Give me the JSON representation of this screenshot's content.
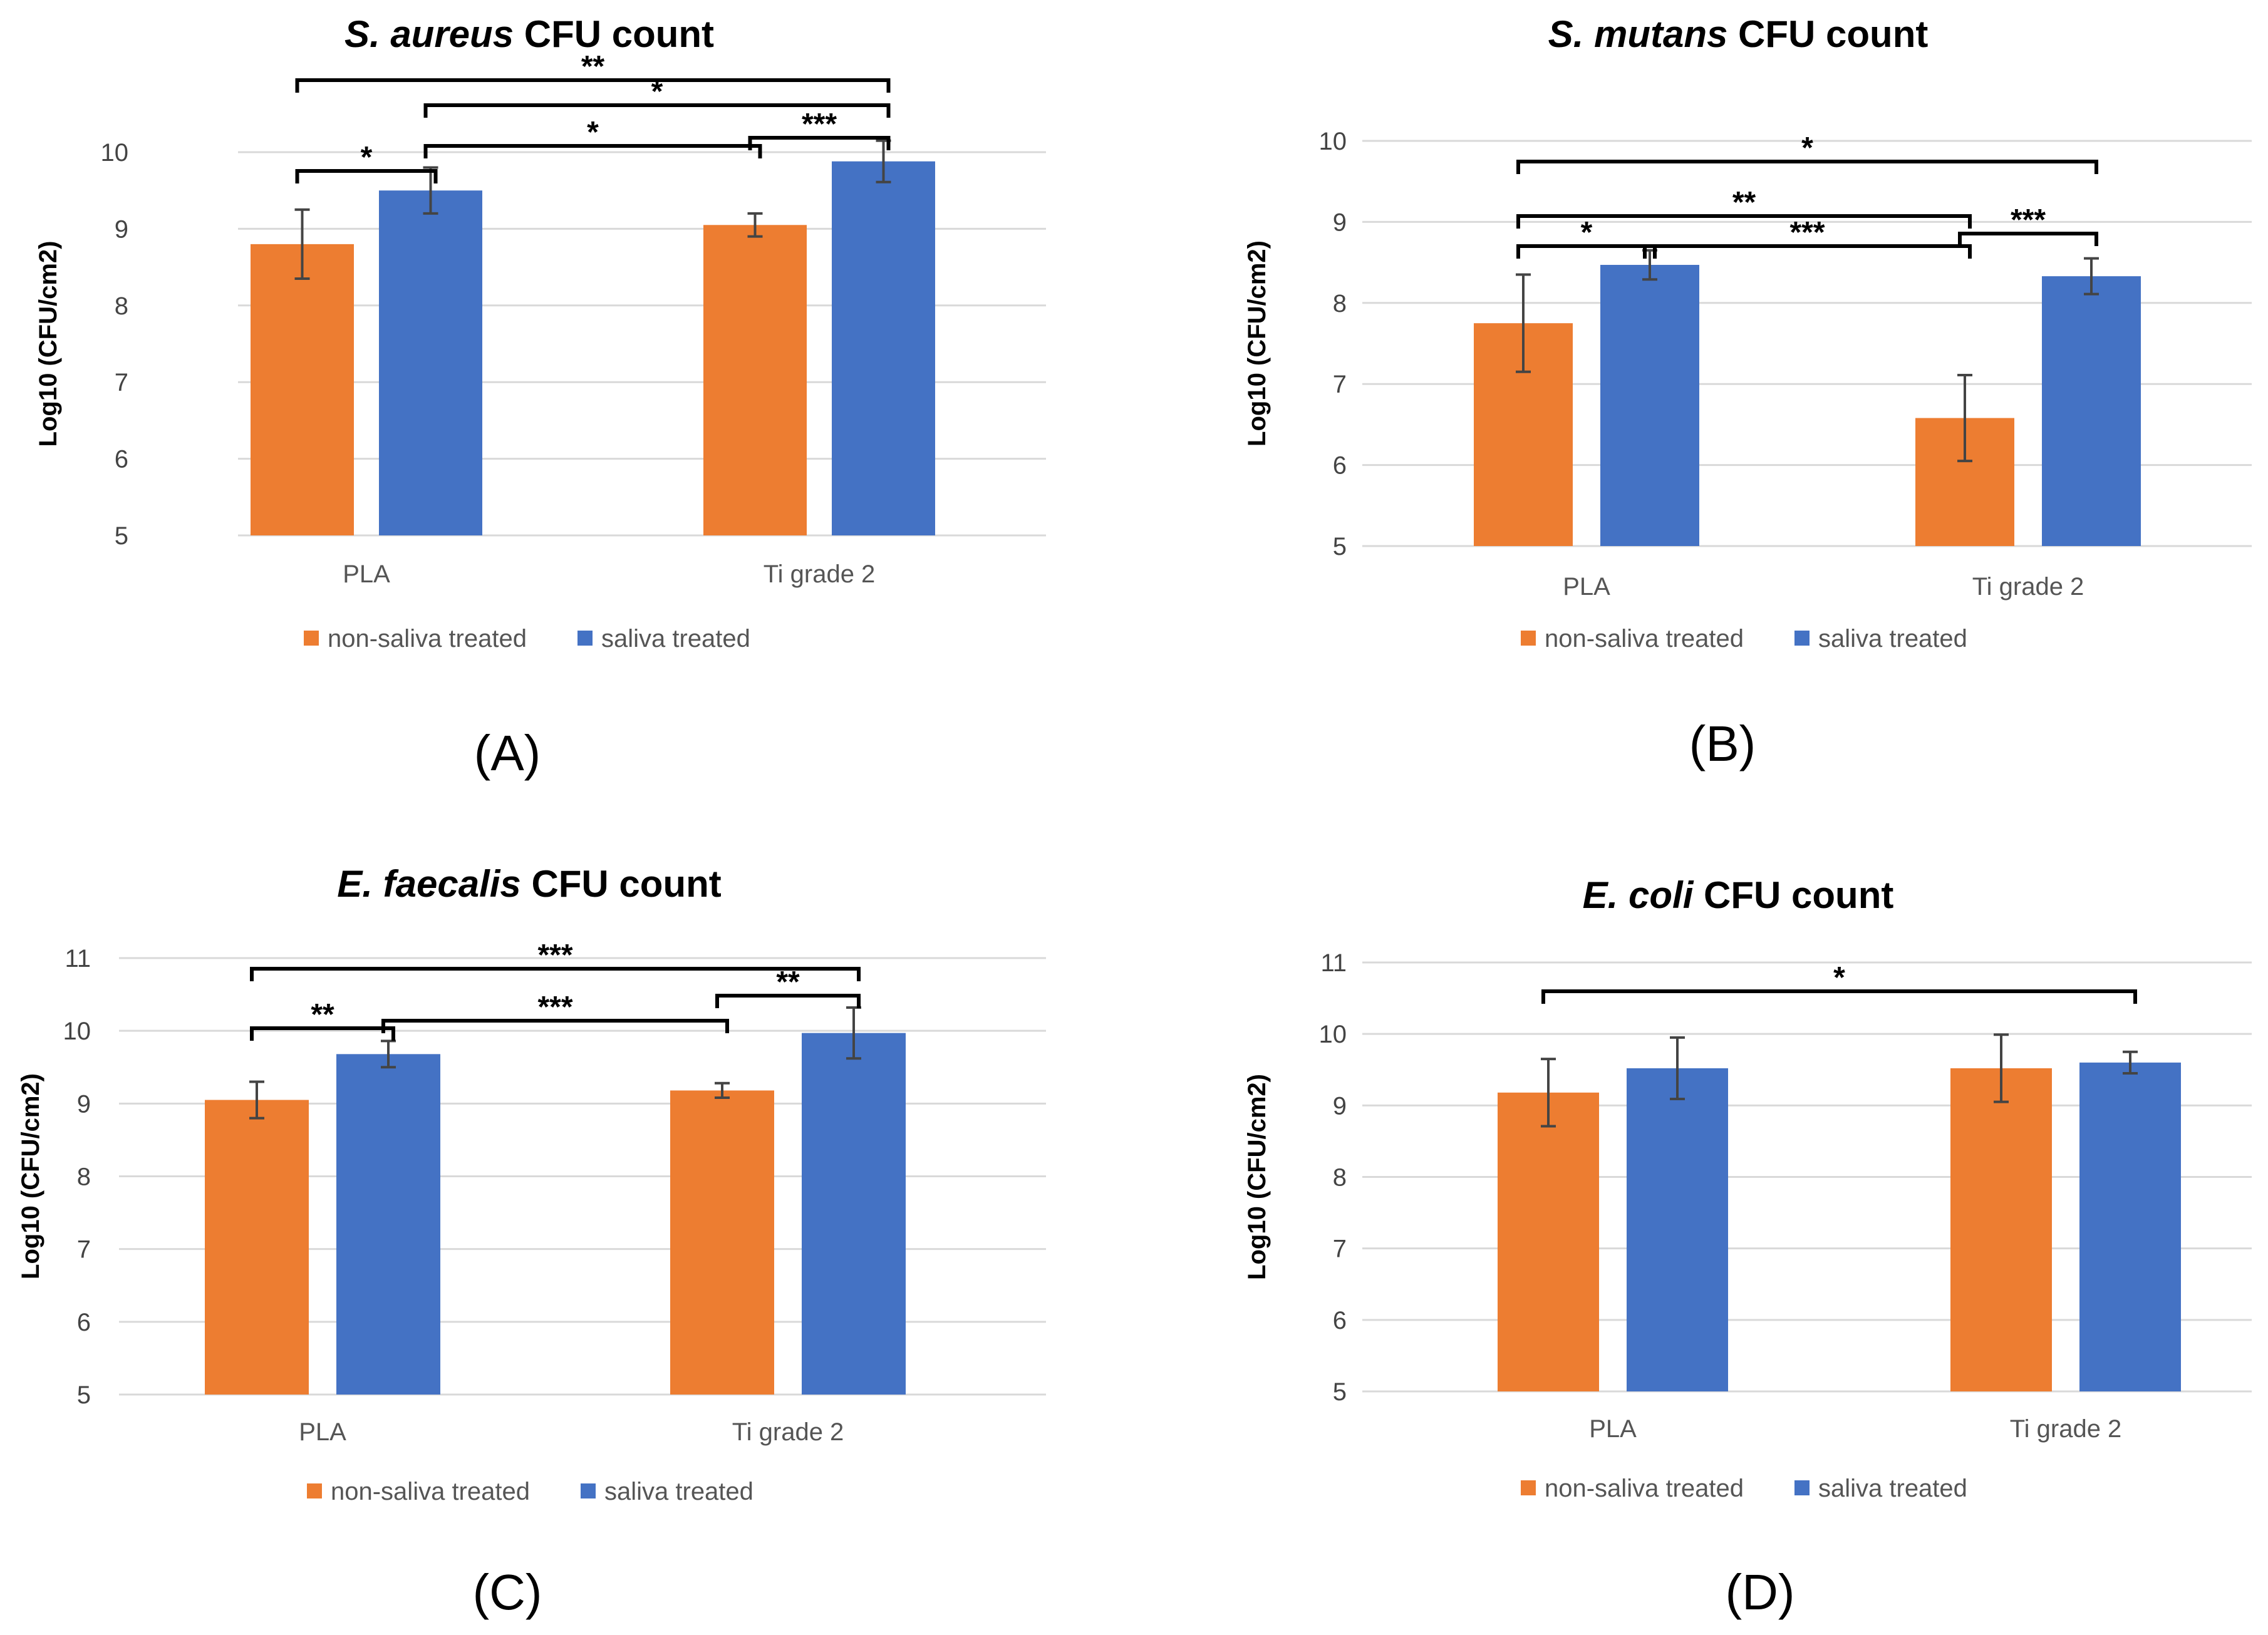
{
  "colors": {
    "non_saliva": "#ED7D31",
    "saliva": "#4472C4",
    "grid": "#D9D9D9"
  },
  "legend": {
    "non_saliva": "non-saliva treated",
    "saliva": "saliva treated"
  },
  "chart_data": [
    {
      "panel": "(A)",
      "type": "bar",
      "title_species": "S. aureus",
      "title_rest": " CFU count",
      "ylabel": "Log10 (CFU/cm2)",
      "ylim": [
        5,
        10
      ],
      "yticks": [
        5,
        6,
        7,
        8,
        9,
        10
      ],
      "categories": [
        "PLA",
        "Ti grade 2"
      ],
      "series": [
        {
          "name": "non-saliva treated",
          "values": [
            8.8,
            9.05
          ],
          "errors": [
            0.45,
            0.15
          ]
        },
        {
          "name": "saliva treated",
          "values": [
            9.5,
            9.88
          ],
          "errors": [
            0.3,
            0.27
          ]
        }
      ],
      "significance": [
        {
          "from": "PLA / non-saliva treated",
          "to": "PLA / saliva treated",
          "label": "*"
        },
        {
          "from": "PLA / saliva treated",
          "to": "Ti grade 2 / non-saliva treated",
          "label": "*"
        },
        {
          "from": "Ti grade 2 / non-saliva treated",
          "to": "Ti grade 2 / saliva treated",
          "label": "***"
        },
        {
          "from": "PLA / saliva treated",
          "to": "Ti grade 2 / saliva treated",
          "label": "*"
        },
        {
          "from": "PLA / non-saliva treated",
          "to": "Ti grade 2 / saliva treated",
          "label": "**"
        }
      ]
    },
    {
      "panel": "(B)",
      "type": "bar",
      "title_species": "S. mutans",
      "title_rest": " CFU count",
      "ylabel": "Log10 (CFU/cm2)",
      "ylim": [
        5,
        10
      ],
      "yticks": [
        5,
        6,
        7,
        8,
        9,
        10
      ],
      "categories": [
        "PLA",
        "Ti grade 2"
      ],
      "series": [
        {
          "name": "non-saliva treated",
          "values": [
            7.75,
            6.58
          ],
          "errors": [
            0.6,
            0.53
          ]
        },
        {
          "name": "saliva treated",
          "values": [
            8.47,
            8.33
          ],
          "errors": [
            0.18,
            0.22
          ]
        }
      ],
      "significance": [
        {
          "from": "PLA / non-saliva treated",
          "to": "PLA / saliva treated",
          "label": "*"
        },
        {
          "from": "PLA / saliva treated",
          "to": "Ti grade 2 / non-saliva treated",
          "label": "***"
        },
        {
          "from": "Ti grade 2 / non-saliva treated",
          "to": "Ti grade 2 / saliva treated",
          "label": "***"
        },
        {
          "from": "PLA / non-saliva treated",
          "to": "Ti grade 2 / non-saliva treated",
          "label": "**"
        },
        {
          "from": "PLA / non-saliva treated",
          "to": "Ti grade 2 / saliva treated",
          "label": "*"
        }
      ]
    },
    {
      "panel": "(C)",
      "type": "bar",
      "title_species": "E. faecalis",
      "title_rest": " CFU count",
      "ylabel": "Log10 (CFU/cm2)",
      "ylim": [
        5,
        11
      ],
      "yticks": [
        5,
        6,
        7,
        8,
        9,
        10,
        11
      ],
      "categories": [
        "PLA",
        "Ti grade 2"
      ],
      "series": [
        {
          "name": "non-saliva treated",
          "values": [
            9.05,
            9.18
          ],
          "errors": [
            0.25,
            0.1
          ]
        },
        {
          "name": "saliva treated",
          "values": [
            9.68,
            9.97
          ],
          "errors": [
            0.18,
            0.35
          ]
        }
      ],
      "significance": [
        {
          "from": "PLA / non-saliva treated",
          "to": "PLA / saliva treated",
          "label": "**"
        },
        {
          "from": "PLA / saliva treated",
          "to": "Ti grade 2 / non-saliva treated",
          "label": "***"
        },
        {
          "from": "Ti grade 2 / non-saliva treated",
          "to": "Ti grade 2 / saliva treated",
          "label": "**"
        },
        {
          "from": "PLA / non-saliva treated",
          "to": "Ti grade 2 / saliva treated",
          "label": "***"
        }
      ]
    },
    {
      "panel": "(D)",
      "type": "bar",
      "title_species": "E. coli",
      "title_rest": " CFU count",
      "ylabel": "Log10 (CFU/cm2)",
      "ylim": [
        5,
        11
      ],
      "yticks": [
        5,
        6,
        7,
        8,
        9,
        10,
        11
      ],
      "categories": [
        "PLA",
        "Ti grade 2"
      ],
      "series": [
        {
          "name": "non-saliva treated",
          "values": [
            9.18,
            9.52
          ],
          "errors": [
            0.47,
            0.47
          ]
        },
        {
          "name": "saliva treated",
          "values": [
            9.52,
            9.6
          ],
          "errors": [
            0.43,
            0.15
          ]
        }
      ],
      "significance": [
        {
          "from": "PLA / non-saliva treated",
          "to": "Ti grade 2 / saliva treated",
          "label": "*"
        }
      ]
    }
  ]
}
